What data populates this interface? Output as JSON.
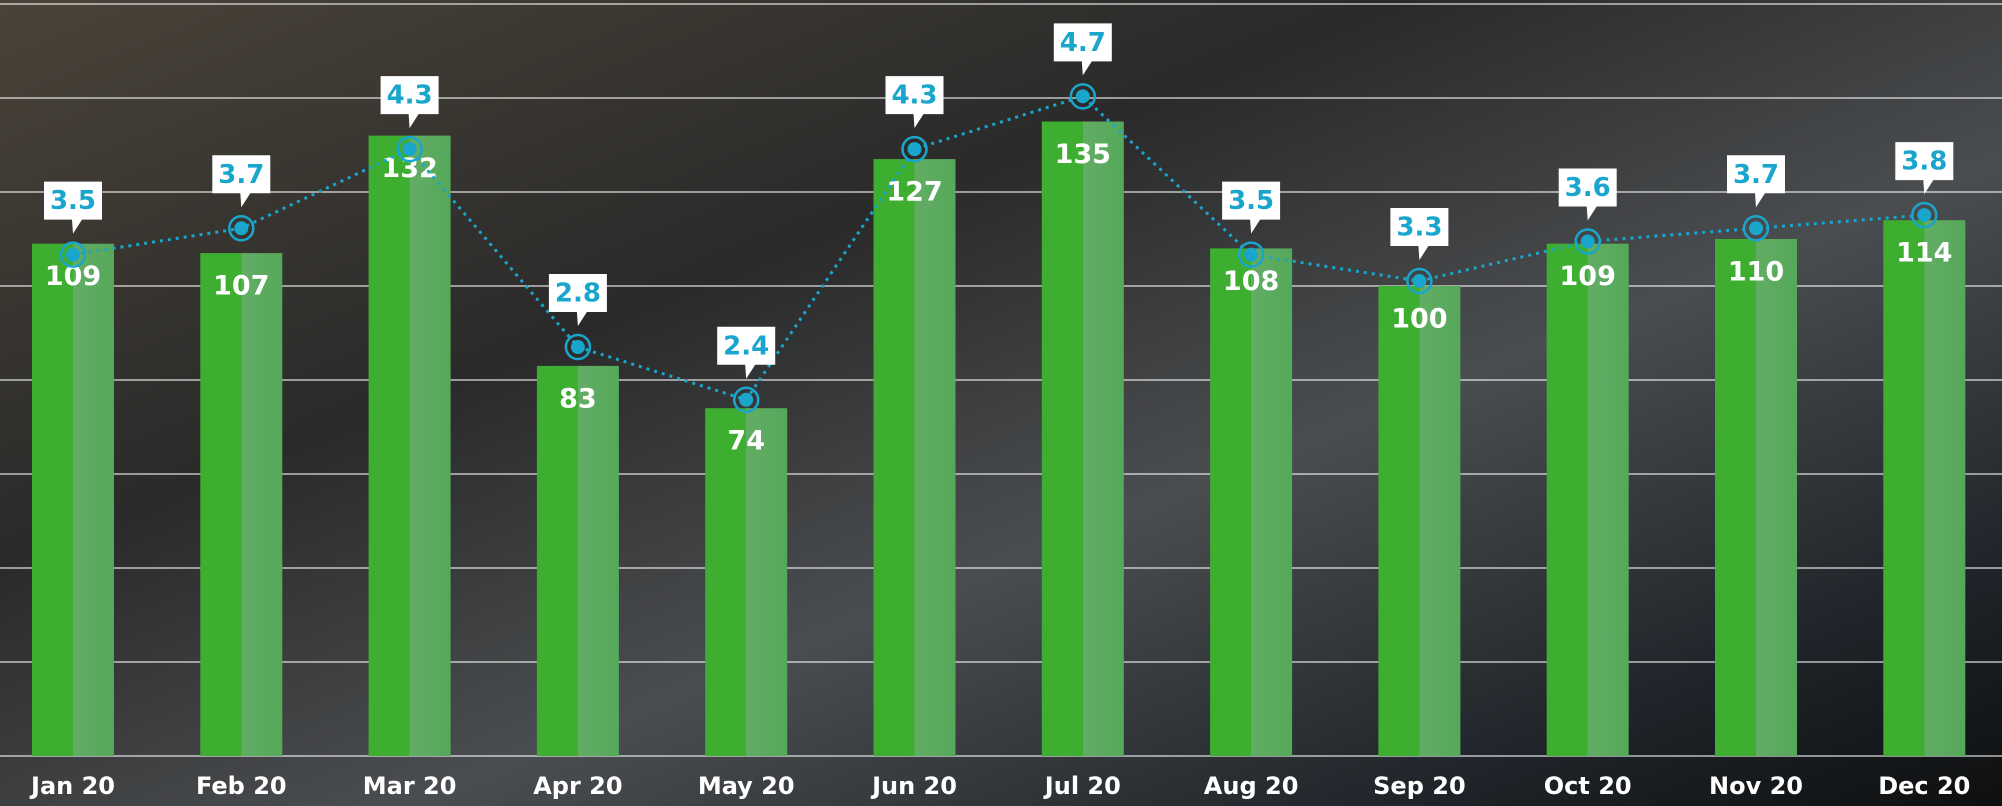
{
  "chart_data": {
    "type": "bar",
    "categories": [
      "Jan 20",
      "Feb 20",
      "Mar 20",
      "Apr 20",
      "May 20",
      "Jun 20",
      "Jul 20",
      "Aug 20",
      "Sep 20",
      "Oct 20",
      "Nov 20",
      "Dec 20"
    ],
    "series": [
      {
        "type": "bar",
        "color": "#3dae30",
        "values": [
          109,
          107,
          132,
          83,
          74,
          127,
          135,
          108,
          100,
          109,
          110,
          114
        ]
      },
      {
        "type": "line",
        "axis": "y2",
        "color": "#1aa6cc",
        "values": [
          3.5,
          3.7,
          4.3,
          2.8,
          2.4,
          4.3,
          4.7,
          3.5,
          3.3,
          3.6,
          3.7,
          3.8
        ]
      }
    ],
    "ylim": [
      0,
      160
    ],
    "yticks": [
      0,
      20,
      40,
      60,
      80,
      100,
      120,
      140,
      160
    ],
    "y2lim": [
      -0.3,
      5.4
    ],
    "grid": true
  }
}
